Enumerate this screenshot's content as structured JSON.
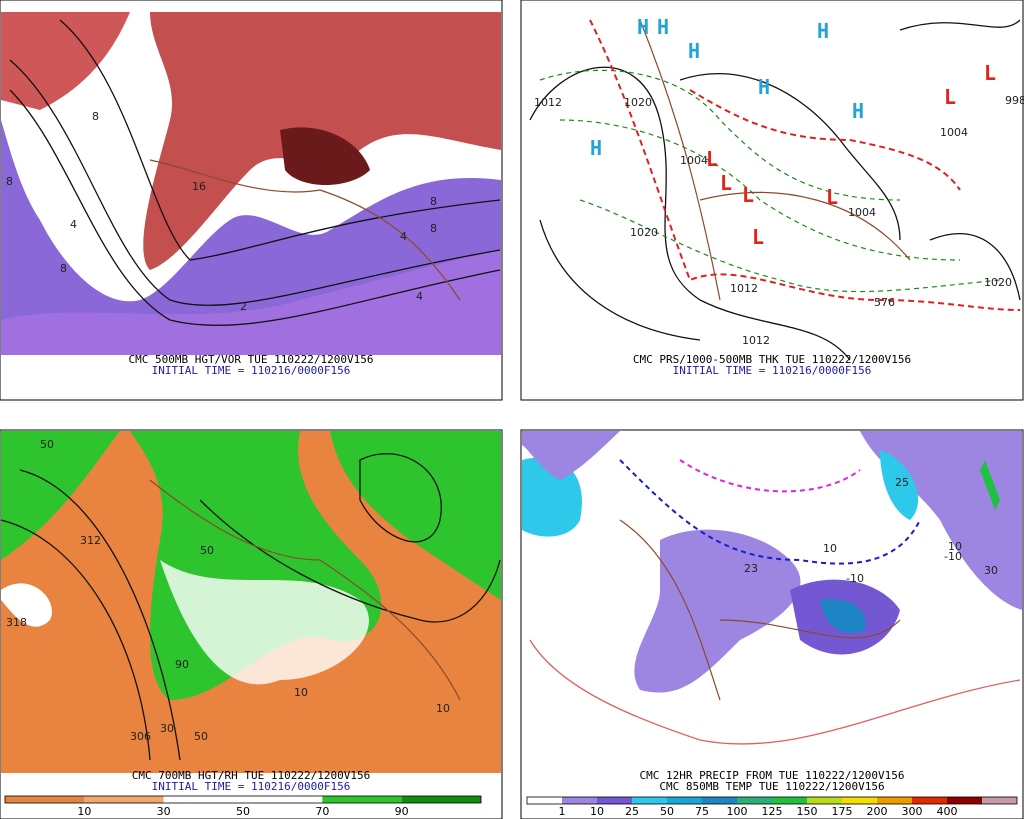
{
  "panels": [
    {
      "caption": "CMC 500MB HGT/VOR TUE 110222/1200V156",
      "subcaption": "INITIAL TIME = 110216/0000F156",
      "map_labels": [
        "8",
        "8",
        "4",
        "8",
        "16",
        "8",
        "8",
        "4",
        "2",
        "4"
      ]
    },
    {
      "caption": "CMC PRS/1000-500MB THK TUE 110222/1200V156",
      "subcaption": "INITIAL TIME = 110216/0000F156",
      "map_labels": [
        "H",
        "H",
        "H",
        "H",
        "H",
        "H",
        "H",
        "L",
        "L",
        "L",
        "L",
        "L",
        "L",
        "L",
        "1012",
        "1020",
        "1004",
        "1004",
        "1020",
        "1012",
        "1020",
        "1012",
        "1004",
        "998",
        "576"
      ]
    },
    {
      "caption": "CMC 700MB HGT/RH TUE 110222/1200V156",
      "subcaption": "INITIAL TIME = 110216/0000F156",
      "map_labels": [
        "312",
        "318",
        "306",
        "50",
        "50",
        "50",
        "90",
        "10",
        "10",
        "30"
      ],
      "colorbar": {
        "labels": [
          10,
          30,
          50,
          70,
          90
        ],
        "colors": [
          "#e8843f",
          "#f2a66a",
          "#ffffff",
          "#ffffff",
          "#2ec42e",
          "#0e8f0e"
        ]
      }
    },
    {
      "caption": "CMC 12HR PRECIP FROM TUE 110222/1200V156",
      "subcaption": "CMC 850MB TEMP TUE 110222/1200V156",
      "map_labels": [
        "25",
        "23",
        "10",
        "-10",
        "10",
        "-10",
        "30"
      ],
      "colorbar": {
        "labels": [
          1,
          10,
          25,
          50,
          75,
          100,
          125,
          150,
          175,
          200,
          300,
          400
        ],
        "colors": [
          "#ffffff",
          "#9c86e2",
          "#7457d2",
          "#2ec8ea",
          "#1aa6da",
          "#1e86c4",
          "#2bb07a",
          "#22c040",
          "#b8dc1c",
          "#f2e000",
          "#f09a00",
          "#e02a00",
          "#8c0000",
          "#c89aa8"
        ]
      }
    }
  ]
}
